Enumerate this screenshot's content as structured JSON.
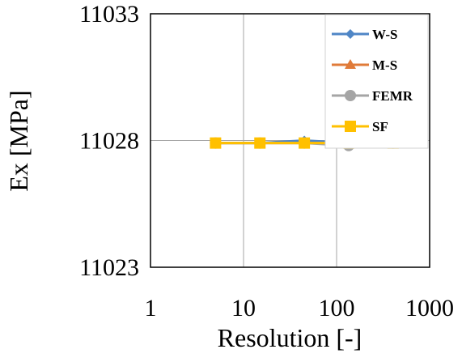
{
  "chart_data": {
    "type": "line",
    "x_scale": "log",
    "xlabel": "Resolution [-]",
    "ylabel": "Ex [MPa]",
    "xlim": [
      1,
      1000
    ],
    "ylim": [
      11023,
      11033
    ],
    "x_ticks": [
      1,
      10,
      100,
      1000
    ],
    "x_tick_labels": [
      "1",
      "10",
      "100",
      "1000"
    ],
    "y_ticks": [
      11023,
      11028,
      11033
    ],
    "y_tick_labels": [
      "11023",
      "11028",
      "11033"
    ],
    "grid": true,
    "legend_position": "top-right",
    "x": [
      5,
      15,
      45,
      135,
      405
    ],
    "series": [
      {
        "name": "W-S",
        "color": "#4f86c6",
        "marker": "diamond",
        "values": [
          11027.9,
          11027.9,
          11028.0,
          11027.9,
          11027.9
        ]
      },
      {
        "name": "M-S",
        "color": "#e07b39",
        "marker": "triangle",
        "values": [
          11027.9,
          11027.9,
          11027.9,
          11027.9,
          11027.9
        ]
      },
      {
        "name": "FEMR",
        "color": "#a5a5a5",
        "marker": "circle",
        "values": [
          11027.9,
          11027.9,
          11027.9,
          11027.8,
          11027.9
        ]
      },
      {
        "name": "SF",
        "color": "#ffc000",
        "marker": "square",
        "values": [
          11027.9,
          11027.9,
          11027.9,
          11027.9,
          11027.9
        ]
      }
    ]
  }
}
